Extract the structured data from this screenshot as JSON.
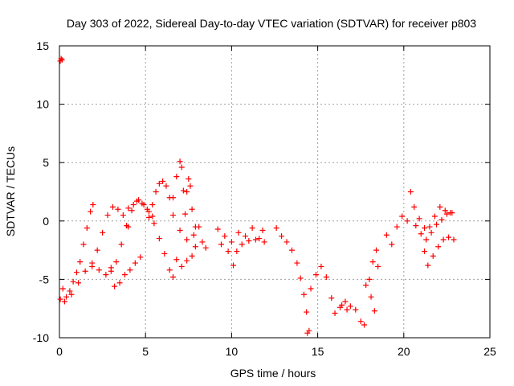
{
  "chart_data": {
    "type": "scatter",
    "title": "Day 303 of 2022, Sidereal Day-to-day VTEC variation (SDTVAR) for receiver p803",
    "xlabel": "GPS time / hours",
    "ylabel": "SDTVAR / TECUs",
    "xlim": [
      0,
      25
    ],
    "ylim": [
      -10,
      15
    ],
    "xticks": [
      "0",
      "5",
      "10",
      "15",
      "20",
      "25"
    ],
    "yticks": [
      "-10",
      "-5",
      "0",
      "5",
      "10",
      "15"
    ],
    "grid": true,
    "marker": "+",
    "series_color": "#ff0000",
    "series": [
      {
        "values": [
          {
            "x": 0.05,
            "y": 13.7
          },
          {
            "x": 0.1,
            "y": 13.9
          },
          {
            "x": 0.15,
            "y": 13.8
          },
          {
            "x": 0.05,
            "y": -6.7
          },
          {
            "x": 0.2,
            "y": -5.8
          },
          {
            "x": 0.4,
            "y": -6.5
          },
          {
            "x": 0.6,
            "y": -6.0
          },
          {
            "x": 0.8,
            "y": -5.2
          },
          {
            "x": 1.0,
            "y": -4.4
          },
          {
            "x": 1.2,
            "y": -3.5
          },
          {
            "x": 1.4,
            "y": -2.0
          },
          {
            "x": 1.6,
            "y": -0.6
          },
          {
            "x": 1.8,
            "y": 0.8
          },
          {
            "x": 1.95,
            "y": 1.4
          },
          {
            "x": 0.3,
            "y": -6.9
          },
          {
            "x": 0.7,
            "y": -6.3
          },
          {
            "x": 1.1,
            "y": -5.3
          },
          {
            "x": 1.5,
            "y": -4.3
          },
          {
            "x": 1.9,
            "y": -3.9
          },
          {
            "x": 2.3,
            "y": -4.2
          },
          {
            "x": 2.7,
            "y": -4.6
          },
          {
            "x": 3.0,
            "y": -4.0
          },
          {
            "x": 1.9,
            "y": -3.6
          },
          {
            "x": 2.2,
            "y": -2.5
          },
          {
            "x": 2.5,
            "y": -1.0
          },
          {
            "x": 2.8,
            "y": 0.5
          },
          {
            "x": 3.1,
            "y": 1.2
          },
          {
            "x": 3.4,
            "y": 1.0
          },
          {
            "x": 3.7,
            "y": 0.5
          },
          {
            "x": 4.0,
            "y": -0.5
          },
          {
            "x": 3.0,
            "y": -4.3
          },
          {
            "x": 3.3,
            "y": -3.5
          },
          {
            "x": 3.6,
            "y": -2.0
          },
          {
            "x": 3.9,
            "y": -0.4
          },
          {
            "x": 4.2,
            "y": 0.9
          },
          {
            "x": 4.5,
            "y": 1.7
          },
          {
            "x": 4.8,
            "y": 1.5
          },
          {
            "x": 5.1,
            "y": 1.0
          },
          {
            "x": 5.4,
            "y": 0.4
          },
          {
            "x": 3.2,
            "y": -5.6
          },
          {
            "x": 3.5,
            "y": -5.3
          },
          {
            "x": 3.8,
            "y": -4.6
          },
          {
            "x": 4.1,
            "y": -4.2
          },
          {
            "x": 4.4,
            "y": -3.6
          },
          {
            "x": 4.7,
            "y": -3.1
          },
          {
            "x": 4.0,
            "y": 1.1
          },
          {
            "x": 4.3,
            "y": 1.4
          },
          {
            "x": 4.6,
            "y": 1.8
          },
          {
            "x": 4.9,
            "y": 1.4
          },
          {
            "x": 5.2,
            "y": 0.8
          },
          {
            "x": 5.5,
            "y": -0.2
          },
          {
            "x": 5.8,
            "y": -1.5
          },
          {
            "x": 6.1,
            "y": -2.8
          },
          {
            "x": 6.4,
            "y": -4.2
          },
          {
            "x": 6.6,
            "y": -4.8
          },
          {
            "x": 5.2,
            "y": 0.3
          },
          {
            "x": 5.4,
            "y": 1.4
          },
          {
            "x": 5.6,
            "y": 2.5
          },
          {
            "x": 5.8,
            "y": 3.2
          },
          {
            "x": 6.0,
            "y": 3.4
          },
          {
            "x": 6.2,
            "y": 3.0
          },
          {
            "x": 6.4,
            "y": 2.0
          },
          {
            "x": 6.6,
            "y": 0.5
          },
          {
            "x": 6.6,
            "y": 2.0
          },
          {
            "x": 6.8,
            "y": 3.8
          },
          {
            "x": 7.0,
            "y": 5.1
          },
          {
            "x": 7.1,
            "y": 4.6
          },
          {
            "x": 7.2,
            "y": 2.6
          },
          {
            "x": 7.3,
            "y": 0.6
          },
          {
            "x": 7.4,
            "y": 2.5
          },
          {
            "x": 7.5,
            "y": 3.6
          },
          {
            "x": 7.6,
            "y": 3.0
          },
          {
            "x": 7.7,
            "y": 1.0
          },
          {
            "x": 7.9,
            "y": -0.5
          },
          {
            "x": 6.8,
            "y": -3.3
          },
          {
            "x": 7.1,
            "y": -3.9
          },
          {
            "x": 7.4,
            "y": -3.4
          },
          {
            "x": 7.7,
            "y": -3.0
          },
          {
            "x": 7.9,
            "y": -2.2
          },
          {
            "x": 7.0,
            "y": -0.8
          },
          {
            "x": 7.4,
            "y": -1.6
          },
          {
            "x": 7.8,
            "y": -1.2
          },
          {
            "x": 8.1,
            "y": -0.5
          },
          {
            "x": 8.3,
            "y": -1.8
          },
          {
            "x": 8.5,
            "y": -2.3
          },
          {
            "x": 9.2,
            "y": -0.7
          },
          {
            "x": 9.6,
            "y": -1.3
          },
          {
            "x": 10.0,
            "y": -1.8
          },
          {
            "x": 10.4,
            "y": -1.0
          },
          {
            "x": 10.8,
            "y": -1.3
          },
          {
            "x": 11.2,
            "y": -0.6
          },
          {
            "x": 11.6,
            "y": -1.5
          },
          {
            "x": 11.9,
            "y": -1.8
          },
          {
            "x": 9.4,
            "y": -2.0
          },
          {
            "x": 9.8,
            "y": -2.6
          },
          {
            "x": 10.1,
            "y": -3.8
          },
          {
            "x": 10.3,
            "y": -2.6
          },
          {
            "x": 10.6,
            "y": -2.0
          },
          {
            "x": 11.0,
            "y": -1.7
          },
          {
            "x": 11.4,
            "y": -1.6
          },
          {
            "x": 11.8,
            "y": -0.8
          },
          {
            "x": 12.6,
            "y": -0.6
          },
          {
            "x": 12.9,
            "y": -1.3
          },
          {
            "x": 13.2,
            "y": -1.8
          },
          {
            "x": 13.5,
            "y": -2.5
          },
          {
            "x": 13.8,
            "y": -3.6
          },
          {
            "x": 14.0,
            "y": -4.9
          },
          {
            "x": 14.2,
            "y": -6.3
          },
          {
            "x": 14.35,
            "y": -7.8
          },
          {
            "x": 14.5,
            "y": -9.4
          },
          {
            "x": 14.4,
            "y": -9.6
          },
          {
            "x": 14.6,
            "y": -5.8
          },
          {
            "x": 14.9,
            "y": -4.6
          },
          {
            "x": 15.2,
            "y": -3.9
          },
          {
            "x": 15.5,
            "y": -4.8
          },
          {
            "x": 15.8,
            "y": -6.6
          },
          {
            "x": 16.0,
            "y": -7.9
          },
          {
            "x": 16.3,
            "y": -7.4
          },
          {
            "x": 16.6,
            "y": -6.9
          },
          {
            "x": 16.9,
            "y": -7.3
          },
          {
            "x": 17.2,
            "y": -7.6
          },
          {
            "x": 17.5,
            "y": -8.6
          },
          {
            "x": 17.7,
            "y": -8.9
          },
          {
            "x": 16.4,
            "y": -7.2
          },
          {
            "x": 16.7,
            "y": -7.6
          },
          {
            "x": 17.8,
            "y": -5.5
          },
          {
            "x": 18.0,
            "y": -5.0
          },
          {
            "x": 18.2,
            "y": -3.5
          },
          {
            "x": 18.4,
            "y": -2.5
          },
          {
            "x": 18.5,
            "y": -3.9
          },
          {
            "x": 18.3,
            "y": -7.7
          },
          {
            "x": 18.1,
            "y": -6.5
          },
          {
            "x": 19.0,
            "y": -1.2
          },
          {
            "x": 19.3,
            "y": -2.0
          },
          {
            "x": 19.6,
            "y": -0.5
          },
          {
            "x": 19.9,
            "y": 0.4
          },
          {
            "x": 20.2,
            "y": 0.0
          },
          {
            "x": 20.4,
            "y": 2.5
          },
          {
            "x": 20.6,
            "y": 1.2
          },
          {
            "x": 20.9,
            "y": 0.2
          },
          {
            "x": 21.2,
            "y": -0.6
          },
          {
            "x": 21.5,
            "y": -0.5
          },
          {
            "x": 21.8,
            "y": 0.4
          },
          {
            "x": 22.1,
            "y": 1.2
          },
          {
            "x": 22.4,
            "y": 0.9
          },
          {
            "x": 22.7,
            "y": 0.7
          },
          {
            "x": 20.7,
            "y": -0.4
          },
          {
            "x": 21.0,
            "y": -1.1
          },
          {
            "x": 21.3,
            "y": -1.6
          },
          {
            "x": 21.6,
            "y": -1.0
          },
          {
            "x": 21.9,
            "y": -0.3
          },
          {
            "x": 22.2,
            "y": 0.1
          },
          {
            "x": 22.5,
            "y": 0.6
          },
          {
            "x": 22.8,
            "y": 0.7
          },
          {
            "x": 21.2,
            "y": -2.6
          },
          {
            "x": 21.4,
            "y": -3.8
          },
          {
            "x": 21.7,
            "y": -3.0
          },
          {
            "x": 22.0,
            "y": -2.2
          },
          {
            "x": 22.3,
            "y": -1.6
          },
          {
            "x": 22.6,
            "y": -1.4
          },
          {
            "x": 22.9,
            "y": -1.6
          }
        ]
      }
    ]
  }
}
